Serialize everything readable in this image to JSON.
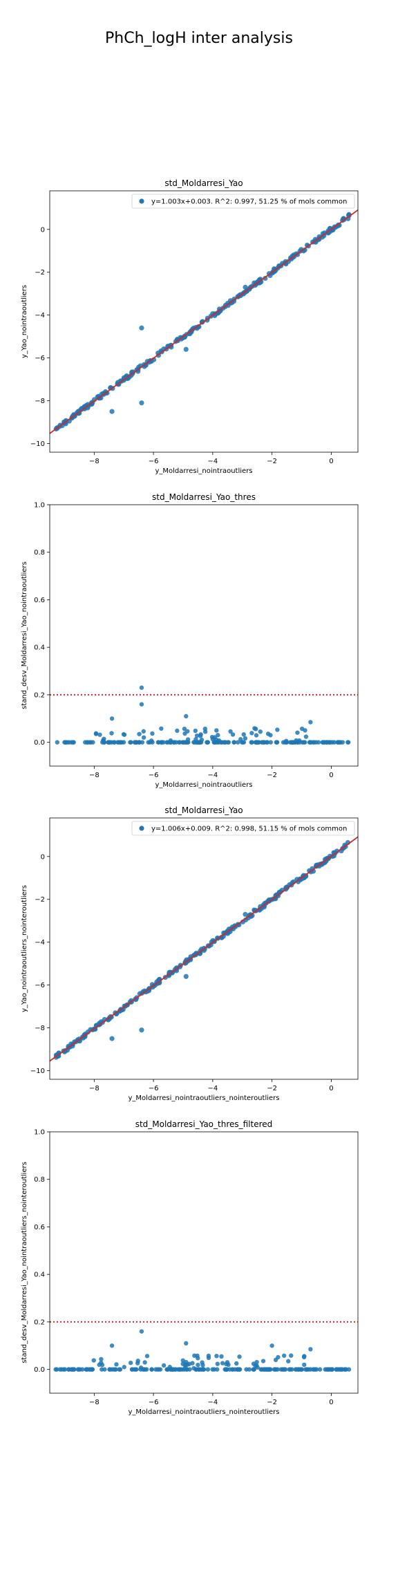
{
  "figure": {
    "suptitle": "PhCh_logH inter analysis"
  },
  "chart_data": [
    {
      "type": "scatter",
      "title": "std_Moldarresi_Yao",
      "xlabel": "y_Moldarresi_nointraoutliers",
      "ylabel": "y_Yao_nointraoutliers",
      "xlim": [
        -9.5,
        0.9
      ],
      "ylim": [
        -10.4,
        1.8
      ],
      "xticks": [
        -8,
        -6,
        -4,
        -2,
        0
      ],
      "yticks": [
        -10,
        -8,
        -6,
        -4,
        -2,
        0
      ],
      "legend_position": "top-right",
      "legend": "y=1.003x+0.003. R^2: 0.997, 51.25 % of mols common",
      "fit": {
        "slope": 1.003,
        "intercept": 0.003,
        "color": "#d62728"
      },
      "point_color": "#1f77b4",
      "outliers": [
        [
          -6.4,
          -4.6
        ],
        [
          -4.9,
          -5.6
        ],
        [
          -7.4,
          -8.5
        ],
        [
          -6.4,
          -8.1
        ],
        [
          -2.9,
          -2.7
        ],
        [
          -2.6,
          -2.5
        ]
      ]
    },
    {
      "type": "scatter",
      "title": "std_Moldarresi_Yao_thres",
      "xlabel": "y_Moldarresi_nointraoutliers",
      "ylabel": "stand_desv_Moldarresi_Yao_nointraoutliers",
      "xlim": [
        -9.5,
        0.9
      ],
      "ylim": [
        -0.1,
        1.0
      ],
      "xticks": [
        -8,
        -6,
        -4,
        -2,
        0
      ],
      "yticks": [
        0.0,
        0.2,
        0.4,
        0.6,
        0.8,
        1.0
      ],
      "threshold": 0.2,
      "threshold_color": "#d62728",
      "point_color": "#1f77b4",
      "highlights": [
        [
          -6.4,
          0.23
        ],
        [
          -6.4,
          0.16
        ],
        [
          -7.4,
          0.1
        ],
        [
          -4.9,
          0.11
        ],
        [
          -0.7,
          0.085
        ]
      ]
    },
    {
      "type": "scatter",
      "title": "std_Moldarresi_Yao",
      "xlabel": "y_Moldarresi_nointraoutliers_nointeroutliers",
      "ylabel": "y_Yao_nointraoutliers_nointeroutliers",
      "xlim": [
        -9.5,
        0.9
      ],
      "ylim": [
        -10.4,
        1.8
      ],
      "xticks": [
        -8,
        -6,
        -4,
        -2,
        0
      ],
      "yticks": [
        -10,
        -8,
        -6,
        -4,
        -2,
        0
      ],
      "legend_position": "top-right",
      "legend": "y=1.006x+0.009. R^2: 0.998, 51.15 % of mols common",
      "fit": {
        "slope": 1.006,
        "intercept": 0.009,
        "color": "#d62728"
      },
      "point_color": "#1f77b4",
      "outliers": [
        [
          -4.9,
          -5.6
        ],
        [
          -7.4,
          -8.5
        ],
        [
          -6.4,
          -8.1
        ],
        [
          -2.9,
          -2.7
        ],
        [
          -2.6,
          -2.5
        ]
      ]
    },
    {
      "type": "scatter",
      "title": "std_Moldarresi_Yao_thres_filtered",
      "xlabel": "y_Moldarresi_nointraoutliers_nointeroutliers",
      "ylabel": "stand_desv_Moldarresi_Yao_nointraoutliers_nointeroutliers",
      "xlim": [
        -9.5,
        0.9
      ],
      "ylim": [
        -0.1,
        1.0
      ],
      "xticks": [
        -8,
        -6,
        -4,
        -2,
        0
      ],
      "yticks": [
        0.0,
        0.2,
        0.4,
        0.6,
        0.8,
        1.0
      ],
      "threshold": 0.2,
      "threshold_color": "#d62728",
      "point_color": "#1f77b4",
      "highlights": [
        [
          -6.4,
          0.16
        ],
        [
          -7.4,
          0.1
        ],
        [
          -4.9,
          0.11
        ],
        [
          -0.7,
          0.085
        ],
        [
          -2.0,
          0.1
        ]
      ]
    }
  ]
}
